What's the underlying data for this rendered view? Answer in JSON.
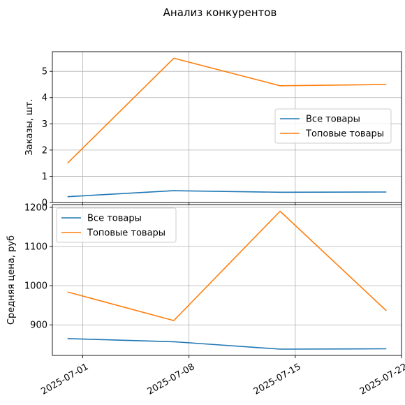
{
  "figure": {
    "title": "Анализ конкурентов"
  },
  "colors": {
    "series_1": "#1f77b4",
    "series_2": "#ff7f0e",
    "grid": "#b0b0b0",
    "axes": "#000000"
  },
  "chart_data": [
    {
      "type": "line",
      "title": "",
      "xlabel": "",
      "ylabel": "Заказы, шт.",
      "x": [
        "2025-06-30",
        "2025-07-07",
        "2025-07-14",
        "2025-07-21"
      ],
      "xlim": [
        "2025-06-29",
        "2025-07-22"
      ],
      "ylim": [
        0,
        5.75
      ],
      "yticks": [
        0,
        1,
        2,
        3,
        4,
        5
      ],
      "ytick_labels": [
        "0",
        "1",
        "2",
        "3",
        "4",
        "5"
      ],
      "grid": true,
      "legend": "center-right",
      "series": [
        {
          "name": "Все товары",
          "values": [
            0.22,
            0.45,
            0.39,
            0.4
          ]
        },
        {
          "name": "Топовые товары",
          "values": [
            1.5,
            5.5,
            4.45,
            4.5
          ]
        }
      ]
    },
    {
      "type": "line",
      "title": "",
      "xlabel": "",
      "ylabel": "Средняя цена, руб",
      "x": [
        "2025-06-30",
        "2025-07-07",
        "2025-07-14",
        "2025-07-21"
      ],
      "xlim": [
        "2025-06-29",
        "2025-07-22"
      ],
      "xticks": [
        "2025-07-01",
        "2025-07-08",
        "2025-07-15",
        "2025-07-22"
      ],
      "xtick_labels": [
        "2025-07-01",
        "2025-07-08",
        "2025-07-15",
        "2025-07-22"
      ],
      "ylim": [
        822,
        1207
      ],
      "yticks": [
        900,
        1000,
        1100,
        1200
      ],
      "ytick_labels": [
        "900",
        "1000",
        "1100",
        "1200"
      ],
      "grid": true,
      "legend": "top-left",
      "series": [
        {
          "name": "Все товары",
          "values": [
            865,
            857,
            838,
            839
          ]
        },
        {
          "name": "Топовые товары",
          "values": [
            984,
            911,
            1190,
            936
          ]
        }
      ]
    }
  ]
}
